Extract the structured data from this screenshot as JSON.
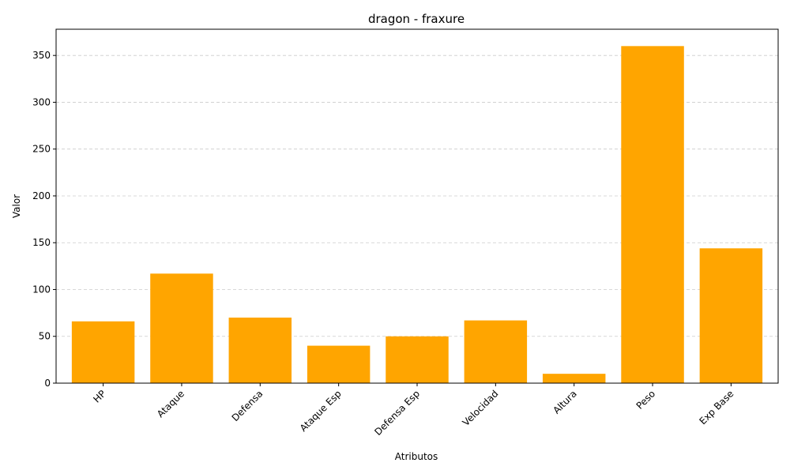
{
  "chart_data": {
    "type": "bar",
    "title": "dragon - fraxure",
    "xlabel": "Atributos",
    "ylabel": "Valor",
    "categories": [
      "HP",
      "Ataque",
      "Defensa",
      "Ataque Esp",
      "Defensa Esp",
      "Velocidad",
      "Altura",
      "Peso",
      "Exp Base"
    ],
    "values": [
      66,
      117,
      70,
      40,
      50,
      67,
      10,
      360,
      144
    ],
    "ylim": [
      0,
      378
    ],
    "yticks": [
      0,
      50,
      100,
      150,
      200,
      250,
      300,
      350
    ],
    "grid": "y",
    "bar_color": "#FFA500",
    "grid_color": "#cccccc",
    "xtick_rotation": "45"
  }
}
